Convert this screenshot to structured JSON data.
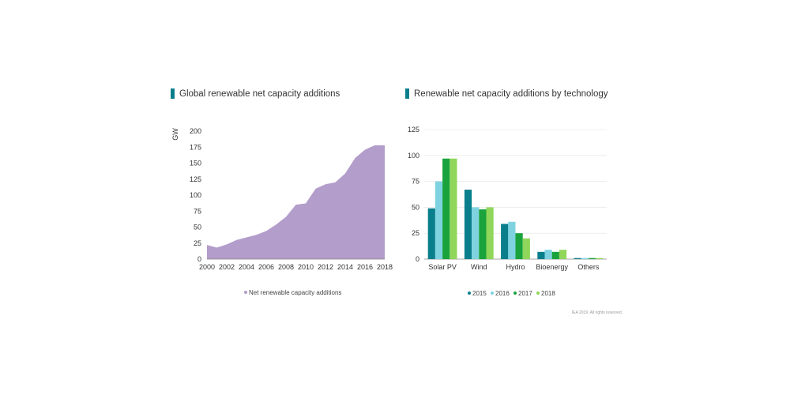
{
  "chart_data": [
    {
      "type": "area",
      "title": "Global renewable net capacity additions",
      "ylabel": "GW",
      "xlabel": "",
      "ylim": [
        0,
        200
      ],
      "yticks": [
        0,
        25,
        50,
        75,
        100,
        125,
        150,
        175,
        200
      ],
      "xticks": [
        2000,
        2002,
        2004,
        2006,
        2008,
        2010,
        2012,
        2014,
        2016,
        2018
      ],
      "grid": false,
      "legend_position": "bottom",
      "series": [
        {
          "name": "Net renewable capacity additions",
          "color": "#b39dcb",
          "x": [
            2000,
            2001,
            2002,
            2003,
            2004,
            2005,
            2006,
            2007,
            2008,
            2009,
            2010,
            2011,
            2012,
            2013,
            2014,
            2015,
            2016,
            2017,
            2018
          ],
          "y": [
            22,
            18,
            23,
            30,
            34,
            38,
            44,
            54,
            66,
            85,
            87,
            110,
            117,
            120,
            134,
            158,
            171,
            178,
            178
          ]
        }
      ]
    },
    {
      "type": "bar",
      "title": "Renewable net capacity additions by technology",
      "ylabel": "",
      "xlabel": "",
      "ylim": [
        0,
        125
      ],
      "yticks": [
        0,
        25,
        50,
        75,
        100,
        125
      ],
      "grid": true,
      "legend_position": "bottom",
      "categories": [
        "Solar PV",
        "Wind",
        "Hydro",
        "Bioenergy",
        "Others"
      ],
      "series": [
        {
          "name": "2015",
          "color": "#0a7f8c",
          "values": [
            49,
            67,
            34,
            7,
            1
          ]
        },
        {
          "name": "2016",
          "color": "#7fd3e0",
          "values": [
            75,
            50,
            36,
            9,
            1
          ]
        },
        {
          "name": "2017",
          "color": "#1aa33c",
          "values": [
            97,
            48,
            25,
            7,
            1
          ]
        },
        {
          "name": "2018",
          "color": "#8fd65a",
          "values": [
            97,
            50,
            20,
            9,
            1
          ]
        }
      ]
    }
  ],
  "copyright": "IEA 2019. All rights reserved."
}
